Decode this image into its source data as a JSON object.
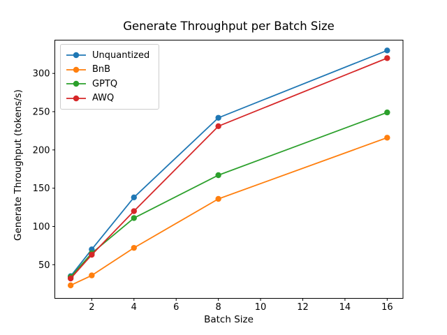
{
  "chart_data": {
    "type": "line",
    "title": "Generate Throughput per Batch Size",
    "xlabel": "Batch Size",
    "ylabel": "Generate Throughput (tokens/s)",
    "x": [
      1,
      2,
      4,
      8,
      16
    ],
    "series": [
      {
        "name": "Unquantized",
        "color": "#1f77b4",
        "values": [
          35,
          70,
          138,
          242,
          330
        ]
      },
      {
        "name": "BnB",
        "color": "#ff7f0e",
        "values": [
          23,
          36,
          72,
          136,
          216
        ]
      },
      {
        "name": "GPTQ",
        "color": "#2ca02c",
        "values": [
          34,
          65,
          111,
          167,
          249
        ]
      },
      {
        "name": "AWQ",
        "color": "#d62728",
        "values": [
          32,
          63,
          120,
          231,
          320
        ]
      }
    ],
    "xticks": [
      2,
      4,
      6,
      8,
      10,
      12,
      14,
      16
    ],
    "yticks": [
      50,
      100,
      150,
      200,
      250,
      300
    ],
    "xlim": [
      0.25,
      16.75
    ],
    "ylim": [
      6,
      343.5
    ],
    "grid": false,
    "legend_position": "upper left",
    "marker": "o"
  }
}
